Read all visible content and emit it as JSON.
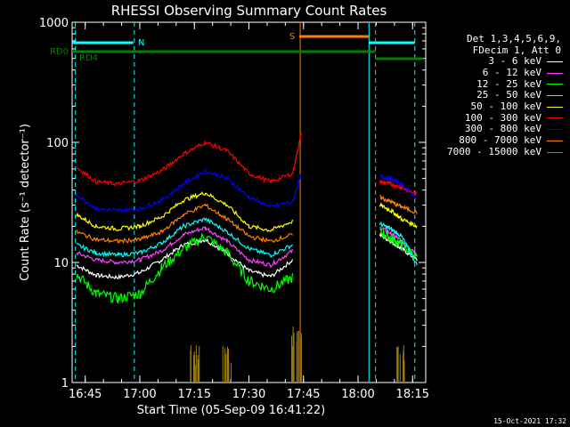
{
  "chart_data": {
    "type": "line",
    "title": "RHESSI Observing Summary Count Rates",
    "xlabel": "Start Time (05-Sep-09 16:41:22)",
    "ylabel": "Count Rate (s⁻¹ detector⁻¹)",
    "ylim": [
      1,
      1000
    ],
    "yscale": "log",
    "xlim": [
      16.69,
      18.31
    ],
    "x_unit": "hours UT",
    "x_ticks": [
      {
        "t": 16.75,
        "label": "16:45"
      },
      {
        "t": 17.0,
        "label": "17:00"
      },
      {
        "t": 17.25,
        "label": "17:15"
      },
      {
        "t": 17.5,
        "label": "17:30"
      },
      {
        "t": 17.75,
        "label": "17:45"
      },
      {
        "t": 18.0,
        "label": "18:00"
      },
      {
        "t": 18.25,
        "label": "18:15"
      }
    ],
    "y_ticks": [
      {
        "v": 1,
        "label": "1"
      },
      {
        "v": 10,
        "label": "10"
      },
      {
        "v": 100,
        "label": "100"
      },
      {
        "v": 1000,
        "label": "1000"
      }
    ],
    "legend_header": [
      "Det 1,3,4,5,6,9,",
      "FDecim 1, Att 0"
    ],
    "series": [
      {
        "name": "3 - 6 keV",
        "color": "#ffffff",
        "values": [
          [
            16.71,
            9.5
          ],
          [
            16.8,
            7.8
          ],
          [
            16.9,
            7.5
          ],
          [
            17.0,
            8.2
          ],
          [
            17.1,
            10.5
          ],
          [
            17.2,
            14
          ],
          [
            17.3,
            15.5
          ],
          [
            17.4,
            12
          ],
          [
            17.5,
            8.5
          ],
          [
            17.6,
            7.6
          ],
          [
            17.7,
            10.5
          ],
          [
            18.1,
            17
          ],
          [
            18.15,
            15
          ],
          [
            18.2,
            13
          ],
          [
            18.27,
            10.5
          ]
        ]
      },
      {
        "name": "6 - 12 keV",
        "color": "#ff40ff",
        "values": [
          [
            16.71,
            12
          ],
          [
            16.8,
            10.5
          ],
          [
            16.9,
            10
          ],
          [
            17.0,
            10.5
          ],
          [
            17.1,
            12.5
          ],
          [
            17.2,
            17
          ],
          [
            17.3,
            19.5
          ],
          [
            17.4,
            15
          ],
          [
            17.5,
            10.5
          ],
          [
            17.6,
            9.5
          ],
          [
            17.7,
            12.5
          ],
          [
            18.1,
            19.5
          ],
          [
            18.15,
            17.5
          ],
          [
            18.2,
            15
          ],
          [
            18.27,
            12
          ]
        ]
      },
      {
        "name": "12 - 25 keV",
        "color": "#00ff00",
        "values": [
          [
            16.71,
            8
          ],
          [
            16.8,
            5.5
          ],
          [
            16.9,
            5
          ],
          [
            17.0,
            5.5
          ],
          [
            17.1,
            9
          ],
          [
            17.2,
            13
          ],
          [
            17.3,
            16.5
          ],
          [
            17.4,
            12
          ],
          [
            17.5,
            7
          ],
          [
            17.6,
            6
          ],
          [
            17.7,
            7.5
          ],
          [
            18.1,
            18
          ],
          [
            18.15,
            16
          ],
          [
            18.2,
            14
          ],
          [
            18.27,
            11
          ]
        ]
      },
      {
        "name": "25 - 50 keV",
        "color": "#00ffff",
        "values": [
          [
            16.71,
            14
          ],
          [
            16.8,
            12
          ],
          [
            16.9,
            11.5
          ],
          [
            17.0,
            12
          ],
          [
            17.1,
            14.5
          ],
          [
            17.2,
            20
          ],
          [
            17.3,
            23
          ],
          [
            17.4,
            18
          ],
          [
            17.5,
            13
          ],
          [
            17.6,
            11.5
          ],
          [
            17.7,
            14
          ],
          [
            18.1,
            21
          ],
          [
            18.15,
            19
          ],
          [
            18.2,
            16.5
          ],
          [
            18.27,
            9.5
          ]
        ]
      },
      {
        "name": "50 - 100 keV",
        "color": "#ffff00",
        "values": [
          [
            16.71,
            25
          ],
          [
            16.8,
            20
          ],
          [
            16.9,
            19
          ],
          [
            17.0,
            20
          ],
          [
            17.1,
            24
          ],
          [
            17.2,
            33
          ],
          [
            17.3,
            38
          ],
          [
            17.4,
            30
          ],
          [
            17.5,
            20
          ],
          [
            17.6,
            18.5
          ],
          [
            17.7,
            22
          ],
          [
            18.1,
            30
          ],
          [
            18.15,
            27
          ],
          [
            18.2,
            23
          ],
          [
            18.27,
            20
          ]
        ]
      },
      {
        "name": "100 - 300 keV",
        "color": "#ff0000",
        "values": [
          [
            16.71,
            62
          ],
          [
            16.8,
            47
          ],
          [
            16.9,
            45
          ],
          [
            17.0,
            48
          ],
          [
            17.1,
            58
          ],
          [
            17.2,
            80
          ],
          [
            17.3,
            100
          ],
          [
            17.4,
            85
          ],
          [
            17.5,
            55
          ],
          [
            17.6,
            47
          ],
          [
            17.7,
            55
          ],
          [
            17.74,
            120
          ],
          [
            18.1,
            47
          ],
          [
            18.15,
            45
          ],
          [
            18.2,
            42
          ],
          [
            18.27,
            37
          ]
        ]
      },
      {
        "name": "300 - 800 keV",
        "color": "#0000ff",
        "values": [
          [
            16.71,
            37
          ],
          [
            16.8,
            28
          ],
          [
            16.9,
            27
          ],
          [
            17.0,
            28
          ],
          [
            17.1,
            33
          ],
          [
            17.2,
            45
          ],
          [
            17.3,
            58
          ],
          [
            17.4,
            50
          ],
          [
            17.5,
            35
          ],
          [
            17.6,
            29
          ],
          [
            17.7,
            32
          ],
          [
            17.74,
            55
          ],
          [
            18.1,
            52
          ],
          [
            18.15,
            50
          ],
          [
            18.2,
            45
          ],
          [
            18.27,
            34
          ]
        ]
      },
      {
        "name": "800 - 7000 keV",
        "color": "#ff8000",
        "values": [
          [
            16.71,
            18
          ],
          [
            16.8,
            15.5
          ],
          [
            16.9,
            15
          ],
          [
            17.0,
            15.5
          ],
          [
            17.1,
            18
          ],
          [
            17.2,
            25
          ],
          [
            17.3,
            30
          ],
          [
            17.4,
            23
          ],
          [
            17.5,
            16.5
          ],
          [
            17.6,
            15
          ],
          [
            17.7,
            17
          ],
          [
            18.1,
            35
          ],
          [
            18.15,
            32
          ],
          [
            18.2,
            29
          ],
          [
            18.27,
            26
          ]
        ]
      },
      {
        "name": "7000 - 15000 keV",
        "color": "#a08000",
        "values": [
          [
            17.25,
            1.9
          ],
          [
            17.4,
            1.9
          ],
          [
            17.72,
            2.8
          ],
          [
            18.2,
            1.9
          ]
        ]
      }
    ],
    "annotations": [
      {
        "label": "N",
        "color": "#00ffff"
      },
      {
        "label": "S",
        "color": "#ff8000"
      },
      {
        "label": "RD0",
        "color": "#008000"
      },
      {
        "label": "RD4",
        "color": "#008000"
      }
    ],
    "timestamp": "15-Oct-2021 17:32"
  }
}
